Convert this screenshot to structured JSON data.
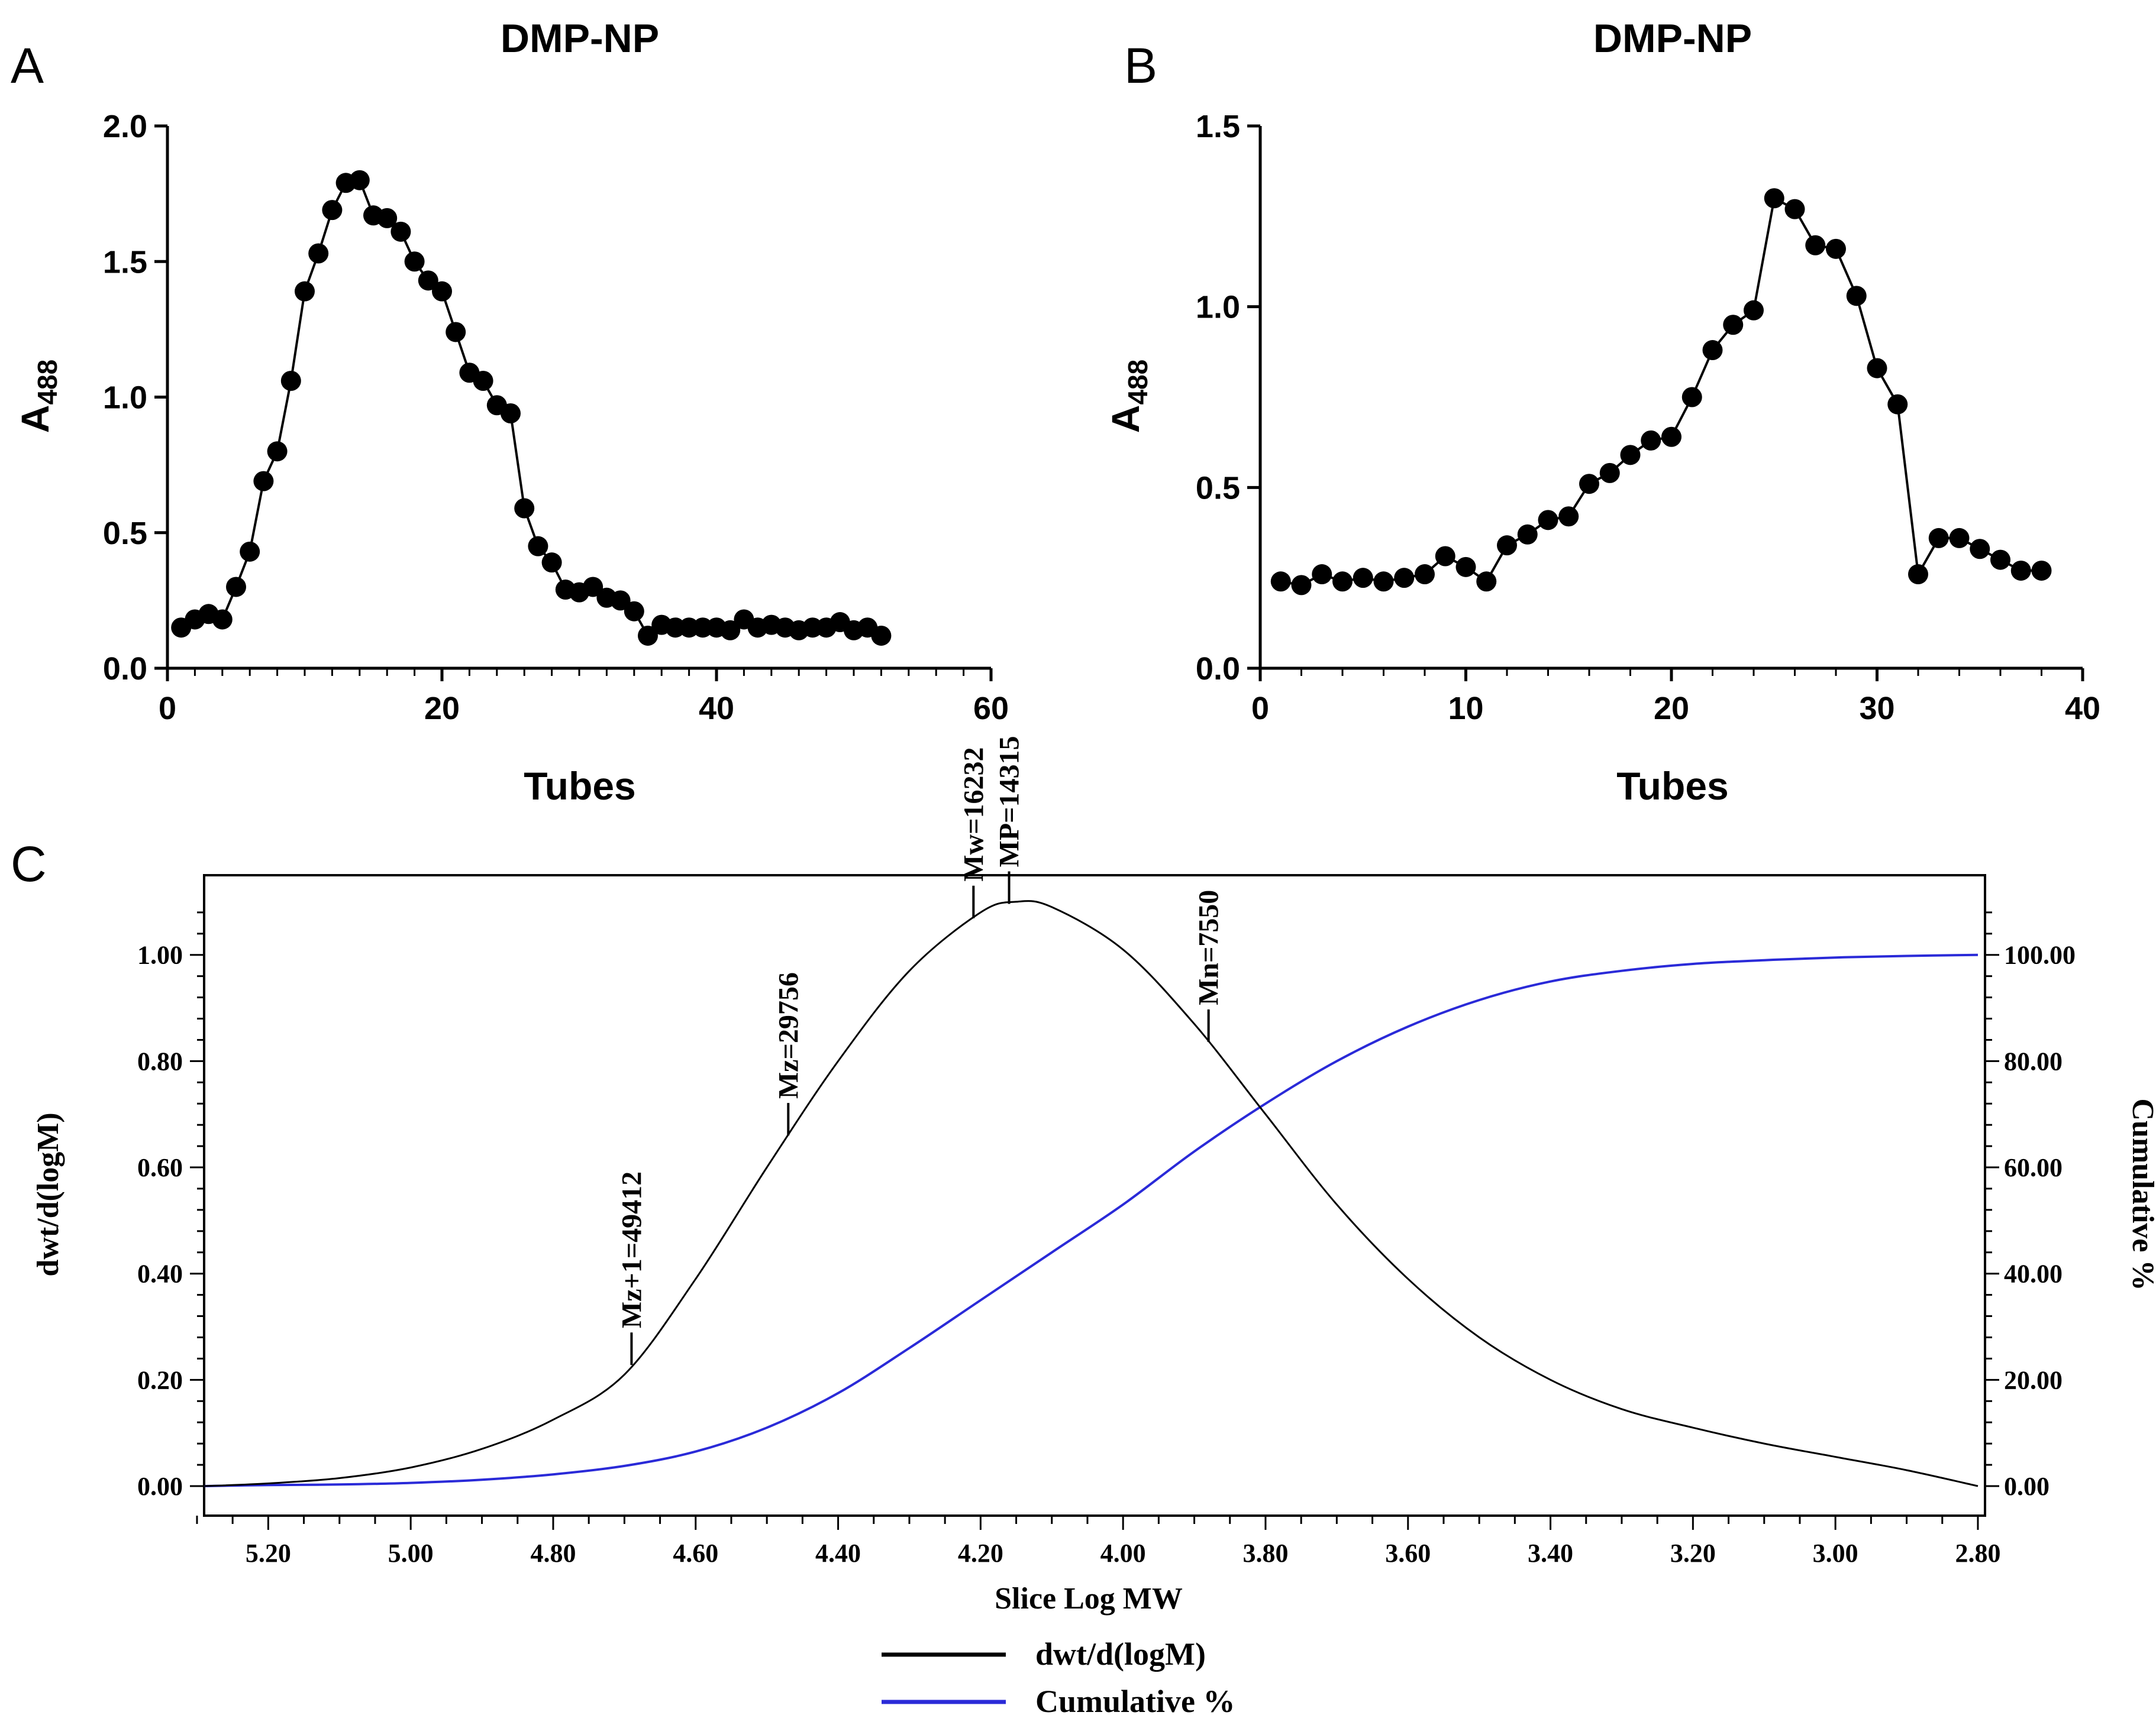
{
  "panels": {
    "A": {
      "letter": "A"
    },
    "B": {
      "letter": "B"
    },
    "C": {
      "letter": "C"
    }
  },
  "chart_data": [
    {
      "id": "A",
      "type": "line",
      "title": "DMP-NP",
      "xlabel": "Tubes",
      "ylabel_main": "A",
      "ylabel_sub": "488",
      "xlim": [
        0,
        60
      ],
      "ylim": [
        0,
        2.0
      ],
      "xticks": [
        "0",
        "20",
        "40",
        "60"
      ],
      "xtick_values": [
        0,
        20,
        40,
        60
      ],
      "yticks": [
        "0.0",
        "0.5",
        "1.0",
        "1.5",
        "2.0"
      ],
      "ytick_values": [
        0,
        0.5,
        1.0,
        1.5,
        2.0
      ],
      "x": [
        1,
        2,
        3,
        4,
        5,
        6,
        7,
        8,
        9,
        10,
        11,
        12,
        13,
        14,
        15,
        16,
        17,
        18,
        19,
        20,
        21,
        22,
        23,
        24,
        25,
        26,
        27,
        28,
        29,
        30,
        31,
        32,
        33,
        34,
        35,
        36,
        37,
        38,
        39,
        40,
        41,
        42,
        43,
        44,
        45,
        46,
        47,
        48,
        49,
        50,
        51,
        52
      ],
      "values": [
        0.15,
        0.18,
        0.2,
        0.18,
        0.3,
        0.43,
        0.69,
        0.8,
        1.06,
        1.39,
        1.53,
        1.69,
        1.79,
        1.8,
        1.67,
        1.66,
        1.61,
        1.5,
        1.43,
        1.39,
        1.24,
        1.09,
        1.06,
        0.97,
        0.94,
        0.59,
        0.45,
        0.39,
        0.29,
        0.28,
        0.3,
        0.26,
        0.25,
        0.21,
        0.12,
        0.16,
        0.15,
        0.15,
        0.15,
        0.15,
        0.14,
        0.18,
        0.15,
        0.16,
        0.15,
        0.14,
        0.15,
        0.15,
        0.17,
        0.14,
        0.15,
        0.12
      ]
    },
    {
      "id": "B",
      "type": "line",
      "title": "DMP-NP",
      "xlabel": "Tubes",
      "ylabel_main": "A",
      "ylabel_sub": "488",
      "xlim": [
        0,
        40
      ],
      "ylim": [
        0,
        1.5
      ],
      "xticks": [
        "0",
        "10",
        "20",
        "30",
        "40"
      ],
      "xtick_values": [
        0,
        10,
        20,
        30,
        40
      ],
      "yticks": [
        "0.0",
        "0.5",
        "1.0",
        "1.5"
      ],
      "ytick_values": [
        0,
        0.5,
        1.0,
        1.5
      ],
      "x": [
        1,
        2,
        3,
        4,
        5,
        6,
        7,
        8,
        9,
        10,
        11,
        12,
        13,
        14,
        15,
        16,
        17,
        18,
        19,
        20,
        21,
        22,
        23,
        24,
        25,
        26,
        27,
        28,
        29,
        30,
        31,
        32,
        33,
        34,
        35,
        36,
        37,
        38
      ],
      "values": [
        0.24,
        0.23,
        0.26,
        0.24,
        0.25,
        0.24,
        0.25,
        0.26,
        0.31,
        0.28,
        0.24,
        0.34,
        0.37,
        0.41,
        0.42,
        0.51,
        0.54,
        0.59,
        0.63,
        0.64,
        0.75,
        0.88,
        0.95,
        0.99,
        1.3,
        1.27,
        1.17,
        1.16,
        1.03,
        0.83,
        0.73,
        0.26,
        0.36,
        0.36,
        0.33,
        0.3,
        0.27,
        0.27
      ]
    },
    {
      "id": "C",
      "type": "line",
      "xlabel": "Slice Log MW",
      "ylabel_left": "dwt/d(logM)",
      "ylabel_right": "Cumulative %",
      "xlim": [
        5.29,
        2.79
      ],
      "ylim_left": [
        0,
        1.15
      ],
      "ylim_right": [
        0,
        115
      ],
      "xticks": [
        "5.20",
        "5.00",
        "4.80",
        "4.60",
        "4.40",
        "4.20",
        "4.00",
        "3.80",
        "3.60",
        "3.40",
        "3.20",
        "3.00",
        "2.80"
      ],
      "xtick_values": [
        5.2,
        5.0,
        4.8,
        4.6,
        4.4,
        4.2,
        4.0,
        3.8,
        3.6,
        3.4,
        3.2,
        3.0,
        2.8
      ],
      "yticks_left": [
        "0.00",
        "0.20",
        "0.40",
        "0.60",
        "0.80",
        "1.00"
      ],
      "ytick_values_left": [
        0,
        0.2,
        0.4,
        0.6,
        0.8,
        1.0
      ],
      "yticks_right": [
        "0.00",
        "20.00",
        "40.00",
        "60.00",
        "80.00",
        "100.00"
      ],
      "ytick_values_right": [
        0,
        20,
        40,
        60,
        80,
        100
      ],
      "series": [
        {
          "name": "dwt/d(logM)",
          "color": "#000000",
          "axis": "left",
          "x": [
            5.29,
            5.2,
            5.1,
            5.0,
            4.9,
            4.8,
            4.7,
            4.6,
            4.5,
            4.4,
            4.3,
            4.2,
            4.15,
            4.1,
            4.0,
            3.9,
            3.8,
            3.7,
            3.6,
            3.5,
            3.4,
            3.3,
            3.2,
            3.1,
            3.0,
            2.9,
            2.8
          ],
          "values": [
            0.0,
            0.005,
            0.015,
            0.035,
            0.07,
            0.125,
            0.21,
            0.39,
            0.6,
            0.8,
            0.97,
            1.08,
            1.1,
            1.09,
            1.01,
            0.87,
            0.7,
            0.53,
            0.39,
            0.28,
            0.2,
            0.145,
            0.11,
            0.08,
            0.055,
            0.03,
            0.0
          ]
        },
        {
          "name": "Cumulative %",
          "color": "#2a2ad8",
          "axis": "right",
          "x": [
            5.29,
            5.2,
            5.1,
            5.0,
            4.9,
            4.8,
            4.7,
            4.6,
            4.5,
            4.4,
            4.3,
            4.2,
            4.1,
            4.0,
            3.9,
            3.8,
            3.7,
            3.6,
            3.5,
            3.4,
            3.3,
            3.2,
            3.1,
            3.0,
            2.9,
            2.8
          ],
          "values": [
            0,
            0.2,
            0.3,
            0.6,
            1.2,
            2.2,
            3.8,
            6.5,
            11,
            17.5,
            26,
            35,
            44,
            53,
            63,
            72,
            80,
            86.5,
            91.5,
            95,
            97,
            98.3,
            99,
            99.5,
            99.8,
            100
          ]
        }
      ],
      "annotations": [
        {
          "label": "Mz+1=49412",
          "x": 4.69
        },
        {
          "label": "Mz=29756",
          "x": 4.47
        },
        {
          "label": "Mw=16232",
          "x": 4.21
        },
        {
          "label": "MP=14315",
          "x": 4.16
        },
        {
          "label": "Mn=7550",
          "x": 3.88
        }
      ]
    }
  ]
}
